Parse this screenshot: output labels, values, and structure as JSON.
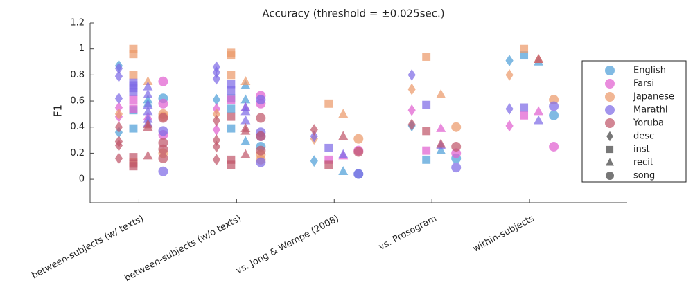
{
  "chart_data": {
    "type": "strip",
    "title": "Accuracy (threshold = ±0.025sec.)",
    "y_label": "F1",
    "categories": [
      "between-subjects (w/ texts)",
      "between-subjects (w/o texts)",
      "vs. Jong & Wempe (2008)",
      "vs. Prosogram",
      "within-subjects"
    ],
    "ylim": [
      -0.18,
      1.2
    ],
    "yticks": [
      0,
      0.2,
      0.4,
      0.6,
      0.8,
      1,
      1.2
    ],
    "types": [
      {
        "name": "desc",
        "marker": "diamond"
      },
      {
        "name": "inst",
        "marker": "square"
      },
      {
        "name": "recit",
        "marker": "triangle"
      },
      {
        "name": "song",
        "marker": "circle"
      }
    ],
    "series": [
      {
        "name": "English",
        "color": "#4f9fd8",
        "values": [
          [
            [
              0.87,
              0.36
            ],
            [
              0.53,
              0.39
            ],
            [
              0.61,
              0.58
            ],
            [
              0.62
            ]
          ],
          [
            [
              0.61
            ],
            [
              0.62,
              0.54,
              0.39
            ],
            [
              0.72,
              0.61,
              0.29
            ],
            [
              0.25
            ]
          ],
          [
            [
              0.14
            ],
            [],
            [
              0.06
            ],
            [
              0.04
            ]
          ],
          [
            [
              0.41
            ],
            [
              0.15
            ],
            [
              0.22
            ],
            [
              0.16
            ]
          ],
          [
            [
              0.91
            ],
            [
              0.95
            ],
            [
              0.9
            ],
            [
              0.49
            ]
          ]
        ]
      },
      {
        "name": "Farsi",
        "color": "#e060d0",
        "values": [
          [
            [
              0.55,
              0.48
            ],
            [
              0.61,
              0.54
            ],
            [
              0.48
            ],
            [
              0.75,
              0.58,
              0.34
            ]
          ],
          [
            [
              0.54,
              0.38
            ],
            [
              0.61
            ],
            [
              0.55
            ],
            [
              0.64,
              0.58
            ]
          ],
          [
            [],
            [
              0.15
            ],
            [
              0.18
            ],
            [
              0.22
            ]
          ],
          [
            [
              0.53
            ],
            [
              0.22
            ],
            [
              0.39
            ],
            [
              0.2
            ]
          ],
          [
            [
              0.41
            ],
            [
              0.49
            ],
            [
              0.52
            ],
            [
              0.25
            ]
          ]
        ]
      },
      {
        "name": "Japanese",
        "color": "#ec9a6b",
        "values": [
          [
            [
              0.5
            ],
            [
              1,
              0.96,
              0.8,
              0.13
            ],
            [
              0.75
            ],
            [
              0.5,
              0.48,
              0.2
            ]
          ],
          [
            [
              0.5
            ],
            [
              0.97,
              0.95,
              0.8
            ],
            [
              0.75
            ],
            [
              0.19,
              0.15
            ]
          ],
          [
            [
              0.31
            ],
            [
              0.58
            ],
            [
              0.5
            ],
            [
              0.31
            ]
          ],
          [
            [
              0.69
            ],
            [
              0.94
            ],
            [
              0.65
            ],
            [
              0.4
            ]
          ],
          [
            [
              0.8
            ],
            [
              1
            ],
            [
              0.92
            ],
            [
              0.61
            ]
          ]
        ]
      },
      {
        "name": "Marathi",
        "color": "#7e6be6",
        "values": [
          [
            [
              0.85,
              0.79,
              0.62
            ],
            [
              0.74,
              0.72,
              0.7,
              0.67
            ],
            [
              0.71,
              0.65,
              0.57,
              0.52,
              0.46,
              0.43
            ],
            [
              0.37,
              0.06
            ]
          ],
          [
            [
              0.86,
              0.82,
              0.77
            ],
            [
              0.73,
              0.68
            ],
            [
              0.55,
              0.52,
              0.45
            ],
            [
              0.61,
              0.36,
              0.33,
              0.13
            ]
          ],
          [
            [
              0.33
            ],
            [
              0.24
            ],
            [
              0.19
            ],
            [
              0.04
            ]
          ],
          [
            [
              0.8
            ],
            [
              0.57
            ],
            [
              0.26
            ],
            [
              0.09
            ]
          ],
          [
            [
              0.54
            ],
            [
              0.55
            ],
            [
              0.45
            ],
            [
              0.56
            ]
          ]
        ]
      },
      {
        "name": "Yoruba",
        "color": "#c0576b",
        "values": [
          [
            [
              0.4,
              0.29,
              0.26,
              0.16
            ],
            [
              0.17,
              0.12,
              0.1
            ],
            [
              0.42,
              0.4,
              0.18
            ],
            [
              0.47,
              0.28,
              0.23,
              0.16
            ]
          ],
          [
            [
              0.45,
              0.3,
              0.25,
              0.15
            ],
            [
              0.48,
              0.15,
              0.11
            ],
            [
              0.39,
              0.37,
              0.19
            ],
            [
              0.47,
              0.33,
              0.22
            ]
          ],
          [
            [
              0.38
            ],
            [
              0.11
            ],
            [
              0.33
            ],
            [
              0.21
            ]
          ],
          [
            [
              0.42
            ],
            [
              0.37
            ],
            [
              0.27
            ],
            [
              0.25
            ]
          ],
          [
            [],
            [],
            [
              0.92
            ],
            []
          ]
        ]
      }
    ]
  }
}
